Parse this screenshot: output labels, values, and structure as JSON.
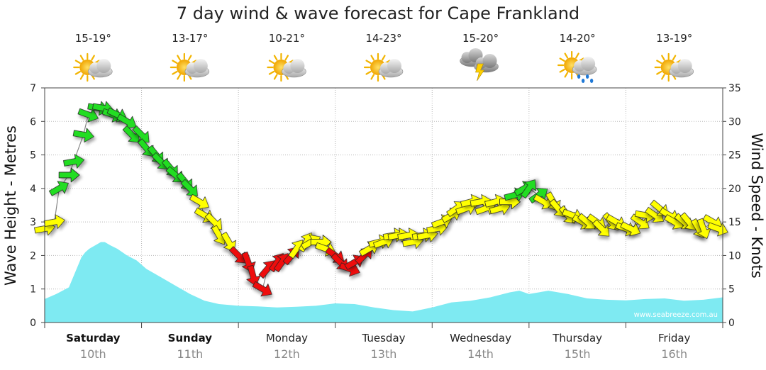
{
  "chart_data": {
    "type": "area",
    "title": "7 day wind & wave forecast for Cape Frankland",
    "watermark": "www.seabreeze.com.au",
    "left_axis": {
      "label": "Wave Height - Metres",
      "range": [
        0,
        7
      ],
      "ticks": [
        "0",
        "1",
        "2",
        "3",
        "4",
        "5",
        "6",
        "7"
      ]
    },
    "right_axis": {
      "label": "Wind Speed - Knots",
      "range": [
        0,
        35
      ],
      "ticks": [
        "0",
        "5",
        "10",
        "15",
        "20",
        "25",
        "30",
        "35"
      ]
    },
    "days": [
      {
        "name": "Saturday",
        "date": "10th",
        "temp": "15-19°",
        "icon": "partly-cloudy-icon",
        "bold": true
      },
      {
        "name": "Sunday",
        "date": "11th",
        "temp": "13-17°",
        "icon": "partly-cloudy-icon",
        "bold": true
      },
      {
        "name": "Monday",
        "date": "12th",
        "temp": "10-21°",
        "icon": "partly-cloudy-icon",
        "bold": false
      },
      {
        "name": "Tuesday",
        "date": "13th",
        "temp": "14-23°",
        "icon": "partly-cloudy-icon",
        "bold": false
      },
      {
        "name": "Wednesday",
        "date": "14th",
        "temp": "15-20°",
        "icon": "thunderstorm-icon",
        "bold": false
      },
      {
        "name": "Thursday",
        "date": "15th",
        "temp": "14-20°",
        "icon": "rain-showers-icon",
        "bold": false
      },
      {
        "name": "Friday",
        "date": "16th",
        "temp": "13-19°",
        "icon": "partly-cloudy-icon",
        "bold": false
      }
    ],
    "x_range_days": [
      0,
      7
    ],
    "wave_series": {
      "name": "Wave Height",
      "x_days": [
        0,
        0.12,
        0.25,
        0.38,
        0.42,
        0.46,
        0.52,
        0.58,
        0.62,
        0.68,
        0.75,
        0.85,
        0.95,
        1.05,
        1.2,
        1.35,
        1.5,
        1.65,
        1.8,
        2.0,
        2.2,
        2.4,
        2.6,
        2.8,
        3.0,
        3.2,
        3.4,
        3.6,
        3.8,
        4.0,
        4.2,
        4.4,
        4.6,
        4.8,
        4.9,
        5.0,
        5.1,
        5.2,
        5.4,
        5.6,
        5.8,
        6.0,
        6.2,
        6.4,
        6.6,
        6.8,
        7.0
      ],
      "values": [
        0.7,
        0.85,
        1.05,
        1.95,
        2.1,
        2.2,
        2.3,
        2.4,
        2.4,
        2.3,
        2.2,
        2.0,
        1.85,
        1.6,
        1.35,
        1.1,
        0.85,
        0.65,
        0.55,
        0.5,
        0.48,
        0.45,
        0.47,
        0.5,
        0.57,
        0.55,
        0.45,
        0.37,
        0.33,
        0.45,
        0.6,
        0.65,
        0.75,
        0.9,
        0.95,
        0.85,
        0.9,
        0.95,
        0.85,
        0.72,
        0.68,
        0.66,
        0.7,
        0.72,
        0.65,
        0.68,
        0.75
      ],
      "color": "#7EEAF2"
    },
    "wind_series": {
      "name": "Wind Speed",
      "color_scale": {
        "calm": "#EE1111",
        "moderate": "#FFFF00",
        "strong": "#22DD22"
      },
      "x_days": [
        0.0,
        0.1,
        0.15,
        0.25,
        0.3,
        0.4,
        0.45,
        0.55,
        0.6,
        0.7,
        0.75,
        0.85,
        0.9,
        1.0,
        1.05,
        1.15,
        1.2,
        1.3,
        1.35,
        1.45,
        1.5,
        1.6,
        1.65,
        1.75,
        1.8,
        1.9,
        2.0,
        2.1,
        2.15,
        2.25,
        2.3,
        2.4,
        2.45,
        2.55,
        2.6,
        2.7,
        2.75,
        2.85,
        2.9,
        3.0,
        3.05,
        3.15,
        3.2,
        3.3,
        3.35,
        3.45,
        3.5,
        3.6,
        3.65,
        3.75,
        3.8,
        3.9,
        3.95,
        4.05,
        4.1,
        4.2,
        4.25,
        4.35,
        4.4,
        4.5,
        4.55,
        4.65,
        4.7,
        4.8,
        4.85,
        4.95,
        5.0,
        5.1,
        5.15,
        5.25,
        5.3,
        5.4,
        5.45,
        5.55,
        5.6,
        5.7,
        5.75,
        5.85,
        5.9,
        6.0,
        6.05,
        6.15,
        6.2,
        6.3,
        6.35,
        6.45,
        6.5,
        6.6,
        6.65,
        6.75,
        6.8,
        6.9,
        6.95
      ],
      "speeds": [
        14,
        15,
        20,
        22,
        24,
        28,
        31,
        32,
        32,
        31,
        31,
        30,
        28,
        28,
        26,
        25,
        24,
        23,
        22,
        21,
        20,
        18,
        16,
        15,
        13,
        12,
        10,
        9,
        7,
        5,
        8,
        9,
        9,
        10,
        11,
        12,
        12,
        12,
        11,
        10,
        9,
        8,
        9,
        10,
        11,
        12,
        12,
        13,
        13,
        13,
        12,
        13,
        13,
        14,
        15,
        16,
        17,
        17,
        18,
        18,
        17,
        18,
        17,
        18,
        19,
        20,
        20,
        19,
        18,
        18,
        17,
        16,
        16,
        15,
        15,
        15,
        14,
        15,
        15,
        14,
        14,
        15,
        16,
        16,
        17,
        16,
        15,
        15,
        15,
        14,
        14,
        15,
        14
      ],
      "directions_deg": [
        80,
        80,
        60,
        90,
        80,
        100,
        110,
        100,
        100,
        110,
        115,
        120,
        135,
        135,
        140,
        140,
        135,
        140,
        130,
        140,
        135,
        120,
        120,
        135,
        150,
        150,
        135,
        160,
        165,
        120,
        40,
        35,
        35,
        40,
        35,
        30,
        60,
        90,
        110,
        125,
        135,
        110,
        60,
        45,
        60,
        75,
        70,
        80,
        80,
        80,
        80,
        80,
        80,
        80,
        70,
        60,
        55,
        70,
        75,
        80,
        70,
        75,
        75,
        90,
        75,
        60,
        35,
        55,
        120,
        150,
        140,
        140,
        110,
        120,
        130,
        125,
        135,
        140,
        120,
        110,
        115,
        125,
        100,
        125,
        130,
        120,
        120,
        130,
        140,
        150,
        160,
        120,
        110
      ]
    }
  }
}
